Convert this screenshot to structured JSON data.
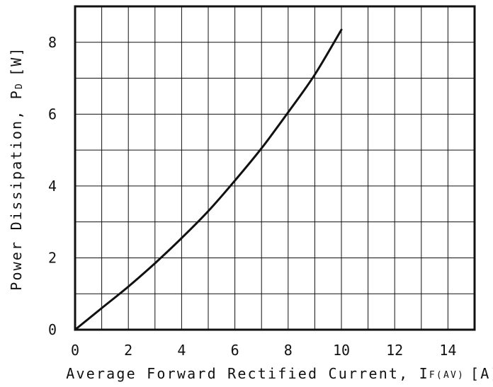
{
  "chart_data": {
    "type": "line",
    "title": "",
    "xlabel_main": "Average Forward Rectified Current, I",
    "xlabel_sub": "F(AV)",
    "xlabel_unit": "[A]",
    "ylabel_main": "Power Dissipation, P",
    "ylabel_sub": "D",
    "ylabel_unit": "[W]",
    "xlim": [
      0,
      15
    ],
    "ylim": [
      0,
      9
    ],
    "x_ticks": [
      0,
      2,
      4,
      6,
      8,
      10,
      12,
      14
    ],
    "y_ticks": [
      0,
      2,
      4,
      6,
      8
    ],
    "x_tick_labels": [
      "0",
      "2",
      "4",
      "6",
      "8",
      "10",
      "12",
      "14"
    ],
    "y_tick_labels": [
      "0",
      "2",
      "4",
      "6",
      "8"
    ],
    "grid": true,
    "x_grid_step": 1,
    "y_grid_step": 1,
    "series": [
      {
        "x": [
          0,
          1,
          2,
          3,
          4,
          5,
          6,
          7,
          8,
          9,
          10
        ],
        "y": [
          0,
          0.6,
          1.2,
          1.85,
          2.55,
          3.3,
          4.15,
          5.05,
          6.05,
          7.1,
          8.35
        ]
      }
    ]
  }
}
